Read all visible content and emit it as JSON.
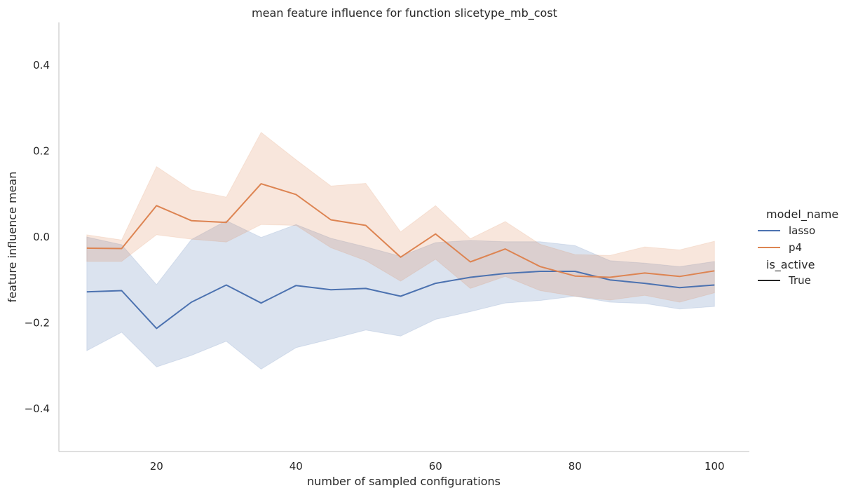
{
  "chart_data": {
    "type": "line",
    "title": "mean feature influence for function slicetype_mb_cost",
    "xlabel": "number of sampled configurations",
    "ylabel": "feature influence mean",
    "xlim": [
      6,
      105
    ],
    "ylim": [
      -0.5,
      0.5
    ],
    "xticks": [
      20,
      40,
      60,
      80,
      100
    ],
    "yticks": [
      -0.4,
      -0.2,
      0.0,
      0.2,
      0.4
    ],
    "xtick_labels": [
      "20",
      "40",
      "60",
      "80",
      "100"
    ],
    "ytick_labels": [
      "−0.4",
      "−0.2",
      "0.0",
      "0.2",
      "0.4"
    ],
    "grid": false,
    "legend_position": "right",
    "legend": {
      "title1": "model_name",
      "title2": "is_active",
      "style_label": "True",
      "style_color": "#262626"
    },
    "x": [
      10,
      15,
      20,
      25,
      30,
      35,
      40,
      45,
      50,
      55,
      60,
      65,
      70,
      75,
      80,
      85,
      90,
      95,
      100
    ],
    "series": [
      {
        "name": "lasso",
        "color": "#4c72b0",
        "values": [
          -0.128,
          -0.125,
          -0.213,
          -0.152,
          -0.112,
          -0.154,
          -0.113,
          -0.123,
          -0.12,
          -0.138,
          -0.108,
          -0.094,
          -0.085,
          -0.08,
          -0.08,
          -0.1,
          -0.108,
          -0.118,
          -0.112
        ],
        "ci_lower": [
          -0.265,
          -0.222,
          -0.303,
          -0.276,
          -0.243,
          -0.308,
          -0.258,
          -0.238,
          -0.217,
          -0.231,
          -0.192,
          -0.174,
          -0.154,
          -0.148,
          -0.138,
          -0.152,
          -0.155,
          -0.168,
          -0.162
        ],
        "ci_upper": [
          0.0,
          -0.018,
          -0.111,
          -0.006,
          0.038,
          -0.001,
          0.029,
          -0.003,
          -0.023,
          -0.045,
          -0.013,
          -0.008,
          -0.011,
          -0.011,
          -0.02,
          -0.055,
          -0.061,
          -0.069,
          -0.057
        ]
      },
      {
        "name": "p4",
        "color": "#dd8452",
        "values": [
          -0.026,
          -0.027,
          0.073,
          0.038,
          0.034,
          0.124,
          0.099,
          0.04,
          0.027,
          -0.047,
          0.007,
          -0.058,
          -0.028,
          -0.069,
          -0.091,
          -0.094,
          -0.084,
          -0.092,
          -0.079
        ],
        "ci_lower": [
          -0.057,
          -0.057,
          0.005,
          -0.005,
          -0.012,
          0.029,
          0.027,
          -0.025,
          -0.055,
          -0.103,
          -0.052,
          -0.12,
          -0.092,
          -0.125,
          -0.138,
          -0.147,
          -0.136,
          -0.152,
          -0.13
        ],
        "ci_upper": [
          0.005,
          -0.007,
          0.164,
          0.11,
          0.093,
          0.244,
          0.18,
          0.119,
          0.125,
          0.012,
          0.073,
          -0.004,
          0.036,
          -0.017,
          -0.041,
          -0.043,
          -0.023,
          -0.03,
          -0.01
        ]
      }
    ]
  }
}
